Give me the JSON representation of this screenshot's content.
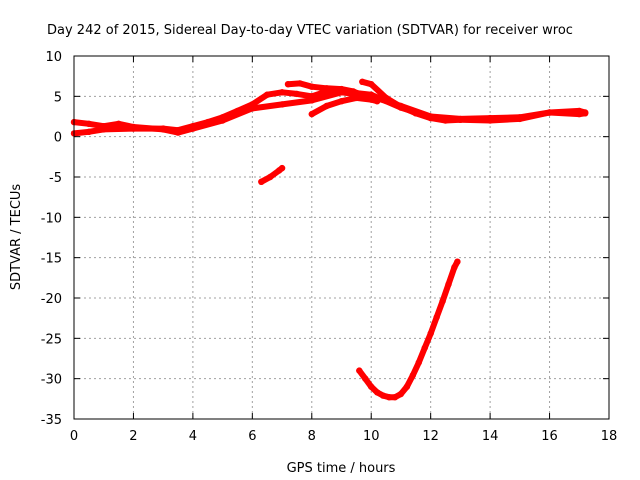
{
  "chart_data": {
    "type": "line",
    "title": "Day 242 of 2015, Sidereal Day-to-day VTEC variation (SDTVAR) for receiver wroc",
    "xlabel": "GPS time / hours",
    "ylabel": "SDTVAR / TECUs",
    "xlim": [
      0,
      18
    ],
    "ylim": [
      -35,
      10
    ],
    "xticks": [
      0,
      2,
      4,
      6,
      8,
      10,
      12,
      14,
      16,
      18
    ],
    "yticks": [
      10,
      5,
      0,
      -5,
      -10,
      -15,
      -20,
      -25,
      -30,
      -35
    ],
    "grid": true,
    "color": "#ff0000",
    "series": [
      {
        "name": "track-1",
        "x": [
          0,
          0.5,
          1.0,
          1.5,
          2.0,
          3.0,
          3.5,
          4.0,
          5.0,
          6.0,
          7.0,
          8.0,
          9.0,
          10.0,
          11.0,
          12.0,
          13.0,
          14.0,
          15.0,
          16.0,
          17.0,
          17.2
        ],
        "y": [
          1.8,
          1.6,
          1.3,
          1.6,
          1.2,
          0.9,
          0.5,
          1.0,
          2.0,
          3.5,
          4.0,
          4.5,
          5.5,
          5.0,
          3.8,
          2.5,
          2.2,
          2.3,
          2.4,
          3.0,
          2.8,
          2.9
        ]
      },
      {
        "name": "track-2",
        "x": [
          0,
          0.5,
          1.0,
          2.0,
          3.0,
          3.5,
          4.0,
          4.5,
          5.0,
          5.5,
          6.0,
          6.5,
          7.0,
          7.5,
          8.0,
          8.5,
          9.0,
          9.5,
          10.0,
          11.0,
          12.0,
          13.0,
          14.0,
          15.0,
          16.0,
          17.0,
          17.2
        ],
        "y": [
          0.4,
          0.6,
          0.9,
          1.0,
          1.0,
          0.8,
          1.3,
          1.8,
          2.4,
          3.2,
          4.0,
          5.2,
          5.5,
          5.3,
          5.0,
          5.6,
          5.8,
          5.4,
          5.2,
          3.6,
          2.4,
          2.1,
          2.0,
          2.2,
          3.0,
          3.2,
          3.0
        ]
      },
      {
        "name": "track-3",
        "x": [
          7.2,
          7.6,
          8.0,
          8.5,
          9.0,
          9.4,
          9.6
        ],
        "y": [
          6.5,
          6.6,
          6.2,
          6.0,
          5.9,
          5.6,
          5.3
        ]
      },
      {
        "name": "track-4",
        "x": [
          8.0,
          8.5,
          9.0,
          9.5,
          10.0,
          10.2
        ],
        "y": [
          2.8,
          3.8,
          4.4,
          4.8,
          4.6,
          4.4
        ]
      },
      {
        "name": "track-5",
        "x": [
          9.7,
          10.0,
          10.5,
          11.0,
          11.5,
          12.0,
          12.5,
          13.0
        ],
        "y": [
          6.8,
          6.5,
          4.8,
          3.7,
          2.9,
          2.3,
          2.0,
          2.1
        ]
      },
      {
        "name": "track-6",
        "x": [
          6.3,
          6.6,
          6.9,
          7.0
        ],
        "y": [
          -5.6,
          -5.0,
          -4.2,
          -3.9
        ]
      },
      {
        "name": "track-7",
        "x": [
          9.6,
          9.8,
          10.0,
          10.2,
          10.4,
          10.6,
          10.8,
          11.0,
          11.2,
          11.4,
          11.6,
          11.8,
          12.0,
          12.2,
          12.4,
          12.6,
          12.8,
          12.9
        ],
        "y": [
          -29.0,
          -30.0,
          -31.0,
          -31.7,
          -32.1,
          -32.3,
          -32.3,
          -31.9,
          -31.0,
          -29.6,
          -28.0,
          -26.2,
          -24.4,
          -22.4,
          -20.4,
          -18.3,
          -16.2,
          -15.5
        ]
      }
    ]
  }
}
